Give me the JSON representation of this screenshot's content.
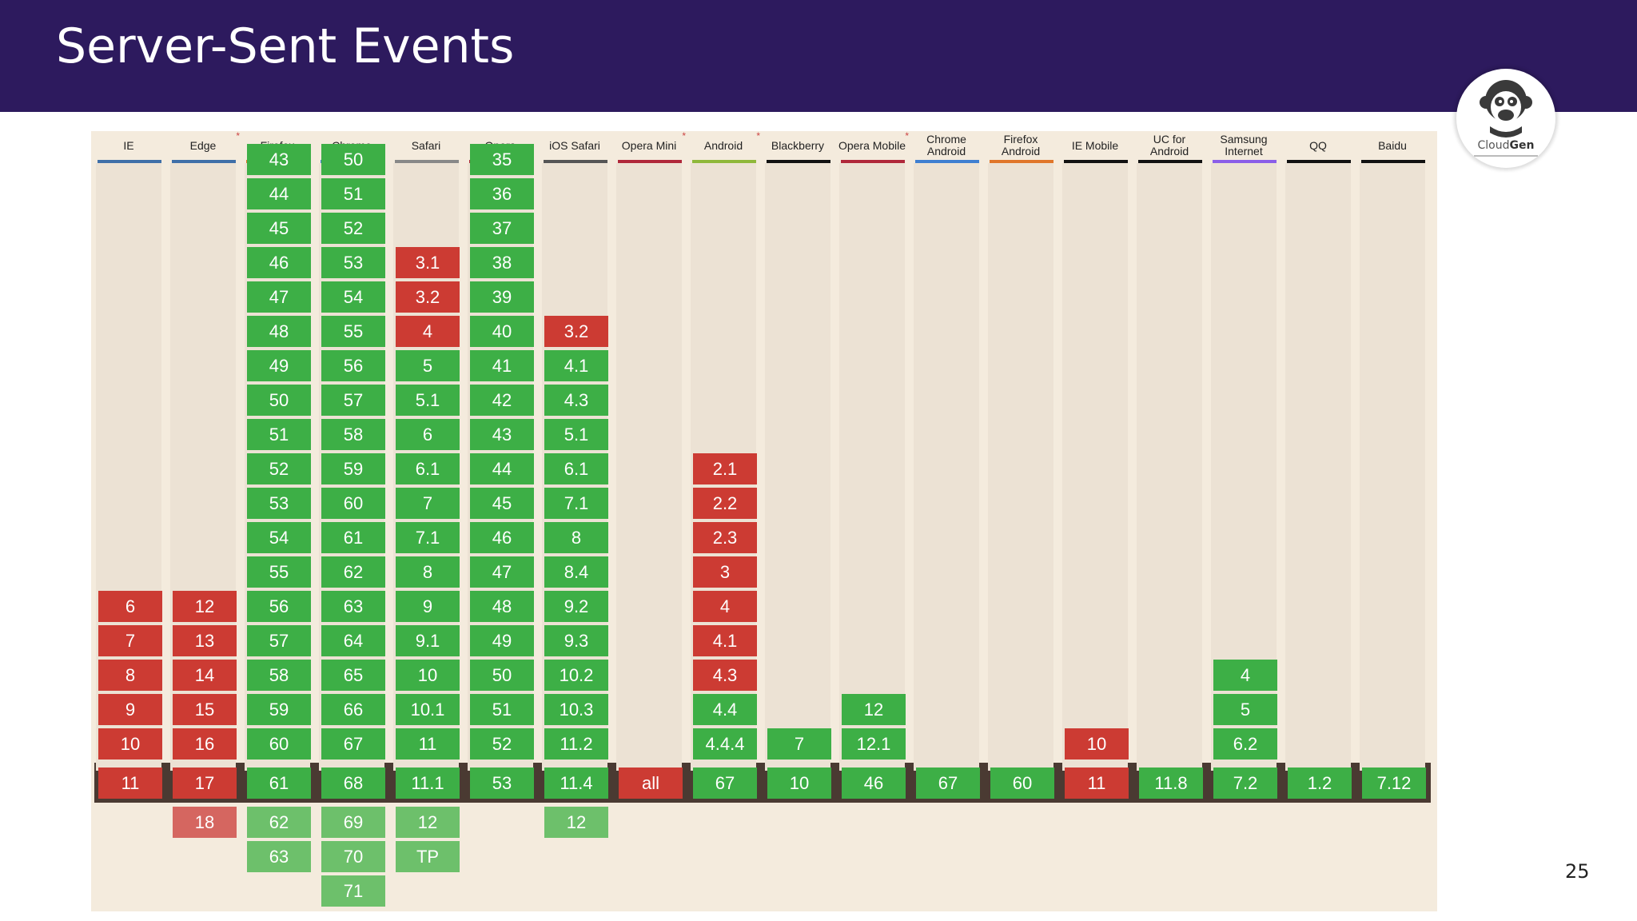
{
  "slide": {
    "title": "Server-Sent Events",
    "page_number": "25"
  },
  "logo": {
    "brand_light": "Cloud",
    "brand_bold": "Gen",
    "icon": "monkey-logo-icon"
  },
  "colors": {
    "header_bg": "#2d1a5e",
    "supported": "#3daf46",
    "unsupported": "#cc3b33",
    "panel_bg": "#f4ebdd"
  },
  "browsers": [
    {
      "name": "IE",
      "line": "#3f6fa8",
      "past": [
        {
          "v": "6",
          "s": "n"
        },
        {
          "v": "7",
          "s": "n"
        },
        {
          "v": "8",
          "s": "n"
        },
        {
          "v": "9",
          "s": "n"
        },
        {
          "v": "10",
          "s": "n"
        }
      ],
      "current": {
        "v": "11",
        "s": "n"
      },
      "future": []
    },
    {
      "name": "Edge",
      "line": "#3f6fa8",
      "mark": "*",
      "past": [
        {
          "v": "12",
          "s": "n"
        },
        {
          "v": "13",
          "s": "n"
        },
        {
          "v": "14",
          "s": "n"
        },
        {
          "v": "15",
          "s": "n"
        },
        {
          "v": "16",
          "s": "n"
        }
      ],
      "current": {
        "v": "17",
        "s": "n"
      },
      "future": [
        {
          "v": "18",
          "s": "n"
        }
      ]
    },
    {
      "name": "Firefox",
      "line": "#e0762a",
      "past": [
        {
          "v": "43",
          "s": "y"
        },
        {
          "v": "44",
          "s": "y"
        },
        {
          "v": "45",
          "s": "y"
        },
        {
          "v": "46",
          "s": "y"
        },
        {
          "v": "47",
          "s": "y"
        },
        {
          "v": "48",
          "s": "y"
        },
        {
          "v": "49",
          "s": "y"
        },
        {
          "v": "50",
          "s": "y"
        },
        {
          "v": "51",
          "s": "y"
        },
        {
          "v": "52",
          "s": "y"
        },
        {
          "v": "53",
          "s": "y"
        },
        {
          "v": "54",
          "s": "y"
        },
        {
          "v": "55",
          "s": "y"
        },
        {
          "v": "56",
          "s": "y"
        },
        {
          "v": "57",
          "s": "y"
        },
        {
          "v": "58",
          "s": "y"
        },
        {
          "v": "59",
          "s": "y"
        },
        {
          "v": "60",
          "s": "y"
        }
      ],
      "current": {
        "v": "61",
        "s": "y"
      },
      "future": [
        {
          "v": "62",
          "s": "y"
        },
        {
          "v": "63",
          "s": "y"
        }
      ]
    },
    {
      "name": "Chrome",
      "line": "#3f7fd1",
      "past": [
        {
          "v": "50",
          "s": "y"
        },
        {
          "v": "51",
          "s": "y"
        },
        {
          "v": "52",
          "s": "y"
        },
        {
          "v": "53",
          "s": "y"
        },
        {
          "v": "54",
          "s": "y"
        },
        {
          "v": "55",
          "s": "y"
        },
        {
          "v": "56",
          "s": "y"
        },
        {
          "v": "57",
          "s": "y"
        },
        {
          "v": "58",
          "s": "y"
        },
        {
          "v": "59",
          "s": "y"
        },
        {
          "v": "60",
          "s": "y"
        },
        {
          "v": "61",
          "s": "y"
        },
        {
          "v": "62",
          "s": "y"
        },
        {
          "v": "63",
          "s": "y"
        },
        {
          "v": "64",
          "s": "y"
        },
        {
          "v": "65",
          "s": "y"
        },
        {
          "v": "66",
          "s": "y"
        },
        {
          "v": "67",
          "s": "y"
        }
      ],
      "current": {
        "v": "68",
        "s": "y"
      },
      "future": [
        {
          "v": "69",
          "s": "y"
        },
        {
          "v": "70",
          "s": "y"
        },
        {
          "v": "71",
          "s": "y"
        }
      ]
    },
    {
      "name": "Safari",
      "line": "#888888",
      "past": [
        {
          "v": "3.1",
          "s": "n"
        },
        {
          "v": "3.2",
          "s": "n"
        },
        {
          "v": "4",
          "s": "n"
        },
        {
          "v": "5",
          "s": "y"
        },
        {
          "v": "5.1",
          "s": "y"
        },
        {
          "v": "6",
          "s": "y"
        },
        {
          "v": "6.1",
          "s": "y"
        },
        {
          "v": "7",
          "s": "y"
        },
        {
          "v": "7.1",
          "s": "y"
        },
        {
          "v": "8",
          "s": "y"
        },
        {
          "v": "9",
          "s": "y"
        },
        {
          "v": "9.1",
          "s": "y"
        },
        {
          "v": "10",
          "s": "y"
        },
        {
          "v": "10.1",
          "s": "y"
        },
        {
          "v": "11",
          "s": "y"
        }
      ],
      "current": {
        "v": "11.1",
        "s": "y"
      },
      "future": [
        {
          "v": "12",
          "s": "y"
        },
        {
          "v": "TP",
          "s": "y"
        }
      ]
    },
    {
      "name": "Opera",
      "line": "#b0283a",
      "past": [
        {
          "v": "35",
          "s": "y"
        },
        {
          "v": "36",
          "s": "y"
        },
        {
          "v": "37",
          "s": "y"
        },
        {
          "v": "38",
          "s": "y"
        },
        {
          "v": "39",
          "s": "y"
        },
        {
          "v": "40",
          "s": "y"
        },
        {
          "v": "41",
          "s": "y"
        },
        {
          "v": "42",
          "s": "y"
        },
        {
          "v": "43",
          "s": "y"
        },
        {
          "v": "44",
          "s": "y"
        },
        {
          "v": "45",
          "s": "y"
        },
        {
          "v": "46",
          "s": "y"
        },
        {
          "v": "47",
          "s": "y"
        },
        {
          "v": "48",
          "s": "y"
        },
        {
          "v": "49",
          "s": "y"
        },
        {
          "v": "50",
          "s": "y"
        },
        {
          "v": "51",
          "s": "y"
        },
        {
          "v": "52",
          "s": "y"
        }
      ],
      "current": {
        "v": "53",
        "s": "y"
      },
      "future": []
    },
    {
      "name": "iOS Safari",
      "line": "#555555",
      "past": [
        {
          "v": "3.2",
          "s": "n"
        },
        {
          "v": "4.1",
          "s": "y"
        },
        {
          "v": "4.3",
          "s": "y"
        },
        {
          "v": "5.1",
          "s": "y"
        },
        {
          "v": "6.1",
          "s": "y"
        },
        {
          "v": "7.1",
          "s": "y"
        },
        {
          "v": "8",
          "s": "y"
        },
        {
          "v": "8.4",
          "s": "y"
        },
        {
          "v": "9.2",
          "s": "y"
        },
        {
          "v": "9.3",
          "s": "y"
        },
        {
          "v": "10.2",
          "s": "y"
        },
        {
          "v": "10.3",
          "s": "y"
        },
        {
          "v": "11.2",
          "s": "y"
        }
      ],
      "current": {
        "v": "11.4",
        "s": "y"
      },
      "future": [
        {
          "v": "12",
          "s": "y"
        }
      ]
    },
    {
      "name": "Opera Mini",
      "line": "#b0283a",
      "mark": "*",
      "past": [],
      "current": {
        "v": "all",
        "s": "n"
      },
      "future": []
    },
    {
      "name": "Android",
      "line": "#8fb83a",
      "mark": "*",
      "past": [
        {
          "v": "2.1",
          "s": "n"
        },
        {
          "v": "2.2",
          "s": "n"
        },
        {
          "v": "2.3",
          "s": "n"
        },
        {
          "v": "3",
          "s": "n"
        },
        {
          "v": "4",
          "s": "n"
        },
        {
          "v": "4.1",
          "s": "n"
        },
        {
          "v": "4.3",
          "s": "n"
        },
        {
          "v": "4.4",
          "s": "y"
        },
        {
          "v": "4.4.4",
          "s": "y"
        }
      ],
      "current": {
        "v": "67",
        "s": "y"
      },
      "future": []
    },
    {
      "name": "Blackberry",
      "line": "#111111",
      "past": [
        {
          "v": "7",
          "s": "y"
        }
      ],
      "current": {
        "v": "10",
        "s": "y"
      },
      "future": []
    },
    {
      "name": "Opera Mobile",
      "line": "#b0283a",
      "mark": "*",
      "past": [
        {
          "v": "12",
          "s": "y"
        },
        {
          "v": "12.1",
          "s": "y"
        }
      ],
      "current": {
        "v": "46",
        "s": "y"
      },
      "future": []
    },
    {
      "name": "Chrome Android",
      "line": "#3f7fd1",
      "past": [],
      "current": {
        "v": "67",
        "s": "y"
      },
      "future": []
    },
    {
      "name": "Firefox Android",
      "line": "#e0762a",
      "past": [],
      "current": {
        "v": "60",
        "s": "y"
      },
      "future": []
    },
    {
      "name": "IE Mobile",
      "line": "#111111",
      "past": [
        {
          "v": "10",
          "s": "n"
        }
      ],
      "current": {
        "v": "11",
        "s": "n"
      },
      "future": []
    },
    {
      "name": "UC for Android",
      "line": "#111111",
      "past": [],
      "current": {
        "v": "11.8",
        "s": "y"
      },
      "future": []
    },
    {
      "name": "Samsung Internet",
      "line": "#8a5ee8",
      "past": [
        {
          "v": "4",
          "s": "y"
        },
        {
          "v": "5",
          "s": "y"
        },
        {
          "v": "6.2",
          "s": "y"
        }
      ],
      "current": {
        "v": "7.2",
        "s": "y"
      },
      "future": []
    },
    {
      "name": "QQ",
      "line": "#111111",
      "past": [],
      "current": {
        "v": "1.2",
        "s": "y"
      },
      "future": []
    },
    {
      "name": "Baidu",
      "line": "#111111",
      "past": [],
      "current": {
        "v": "7.12",
        "s": "y"
      },
      "future": []
    }
  ]
}
